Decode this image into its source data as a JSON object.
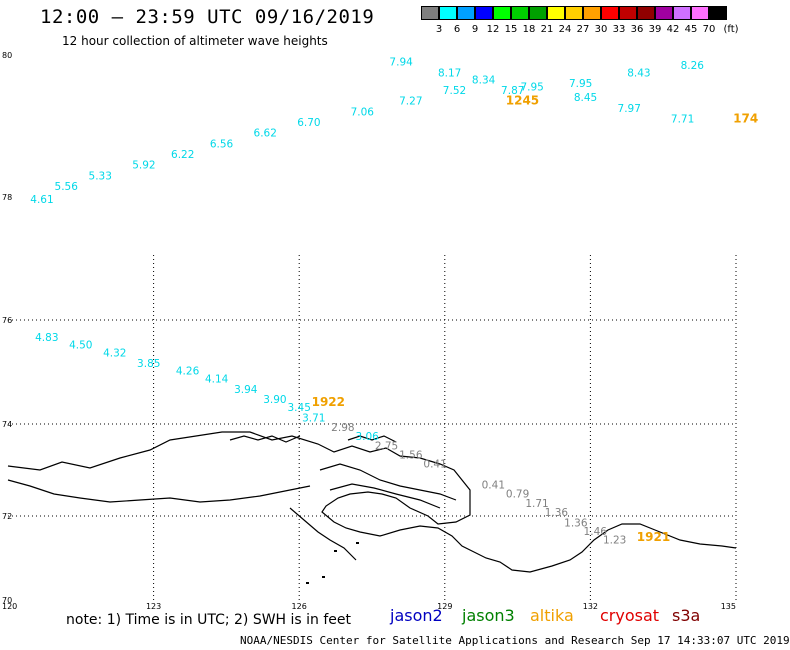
{
  "title": "12:00 – 23:59 UTC 09/16/2019",
  "subtitle": "12 hour collection of altimeter wave heights",
  "colorscale": {
    "colors": [
      "#7f7f7f",
      "#00ffff",
      "#00a0ff",
      "#0000ff",
      "#00ff00",
      "#00d000",
      "#00a000",
      "#ffff00",
      "#ffd000",
      "#ffa000",
      "#ff0000",
      "#c00000",
      "#900000",
      "#a000a0",
      "#d070ff",
      "#ff70ff",
      "#000000"
    ],
    "labels": [
      "3",
      "6",
      "9",
      "12",
      "15",
      "18",
      "21",
      "24",
      "27",
      "30",
      "33",
      "36",
      "39",
      "42",
      "45",
      "70"
    ],
    "unit": "(ft)"
  },
  "map": {
    "lat_labels": [
      "80",
      "78",
      "76",
      "74",
      "72",
      "70"
    ],
    "lon_labels": [
      "120",
      "123",
      "126",
      "129",
      "132",
      "135"
    ],
    "coastline_color": "#000000"
  },
  "tracks": [
    {
      "id": "jason3-track",
      "color": "#00d8e8",
      "points": [
        {
          "lon": 120.7,
          "lat": 77.9,
          "v": "4.61"
        },
        {
          "lon": 121.2,
          "lat": 78.1,
          "v": "5.56"
        },
        {
          "lon": 121.9,
          "lat": 78.25,
          "v": "5.33"
        },
        {
          "lon": 122.8,
          "lat": 78.4,
          "v": "5.92"
        },
        {
          "lon": 123.6,
          "lat": 78.55,
          "v": "6.22"
        },
        {
          "lon": 124.4,
          "lat": 78.7,
          "v": "6.56"
        },
        {
          "lon": 125.3,
          "lat": 78.85,
          "v": "6.62"
        },
        {
          "lon": 126.2,
          "lat": 79.0,
          "v": "6.70"
        },
        {
          "lon": 127.3,
          "lat": 79.15,
          "v": "7.06"
        },
        {
          "lon": 128.3,
          "lat": 79.3,
          "v": "7.27"
        },
        {
          "lon": 129.2,
          "lat": 79.45,
          "v": "7.52"
        },
        {
          "lon": 128.1,
          "lat": 79.85,
          "v": "7.94"
        },
        {
          "lon": 129.1,
          "lat": 79.7,
          "v": "8.17"
        },
        {
          "lon": 129.8,
          "lat": 79.6,
          "v": "8.34"
        },
        {
          "lon": 130.4,
          "lat": 79.45,
          "v": "7.87"
        },
        {
          "lon": 130.8,
          "lat": 79.5,
          "v": "7.95"
        },
        {
          "lon": 131.8,
          "lat": 79.55,
          "v": "7.95"
        },
        {
          "lon": 131.9,
          "lat": 79.35,
          "v": "8.45"
        },
        {
          "lon": 132.8,
          "lat": 79.2,
          "v": "7.97"
        },
        {
          "lon": 133.0,
          "lat": 79.7,
          "v": "8.43"
        },
        {
          "lon": 134.1,
          "lat": 79.8,
          "v": "8.26"
        },
        {
          "lon": 133.9,
          "lat": 79.05,
          "v": "7.71"
        }
      ]
    },
    {
      "id": "jason3-track-south",
      "color": "#00d8e8",
      "points": [
        {
          "lon": 120.8,
          "lat": 75.6,
          "v": "4.83"
        },
        {
          "lon": 121.5,
          "lat": 75.45,
          "v": "4.50"
        },
        {
          "lon": 122.2,
          "lat": 75.3,
          "v": "4.32"
        },
        {
          "lon": 122.9,
          "lat": 75.1,
          "v": "3.85"
        },
        {
          "lon": 123.7,
          "lat": 74.95,
          "v": "4.26"
        },
        {
          "lon": 124.3,
          "lat": 74.8,
          "v": "4.14"
        },
        {
          "lon": 124.9,
          "lat": 74.6,
          "v": "3.94"
        },
        {
          "lon": 125.5,
          "lat": 74.4,
          "v": "3.90"
        },
        {
          "lon": 126.0,
          "lat": 74.25,
          "v": "3.45"
        },
        {
          "lon": 126.3,
          "lat": 74.05,
          "v": "3.71"
        },
        {
          "lon": 127.4,
          "lat": 73.65,
          "v": "3.06"
        }
      ]
    },
    {
      "id": "gray-track",
      "color": "#808080",
      "points": [
        {
          "lon": 126.9,
          "lat": 73.85,
          "v": "2.98"
        },
        {
          "lon": 127.8,
          "lat": 73.45,
          "v": "2.75"
        },
        {
          "lon": 128.3,
          "lat": 73.25,
          "v": "1.56"
        },
        {
          "lon": 128.8,
          "lat": 73.05,
          "v": "0.41"
        },
        {
          "lon": 130.0,
          "lat": 72.6,
          "v": "0.41"
        },
        {
          "lon": 130.5,
          "lat": 72.4,
          "v": "0.79"
        },
        {
          "lon": 130.9,
          "lat": 72.2,
          "v": "1.71"
        },
        {
          "lon": 131.3,
          "lat": 72.0,
          "v": "1.36"
        },
        {
          "lon": 131.7,
          "lat": 71.75,
          "v": "1.36"
        },
        {
          "lon": 132.1,
          "lat": 71.55,
          "v": "1.46"
        },
        {
          "lon": 132.5,
          "lat": 71.35,
          "v": "1.23"
        }
      ]
    }
  ],
  "time_labels": [
    {
      "lon": 130.6,
      "lat": 79.3,
      "v": "1245",
      "color": "#f0a000"
    },
    {
      "lon": 126.6,
      "lat": 74.35,
      "v": "1922",
      "color": "#f0a000"
    },
    {
      "lon": 133.3,
      "lat": 71.4,
      "v": "1921",
      "color": "#f0a000"
    },
    {
      "lon": 135.2,
      "lat": 79.05,
      "v": "174",
      "color": "#f0a000"
    }
  ],
  "note": "note:  1) Time is in UTC;  2) SWH is in feet",
  "satellites": [
    {
      "name": "jason2",
      "color": "#0000c0"
    },
    {
      "name": "jason3",
      "color": "#008000"
    },
    {
      "name": "altika",
      "color": "#f0a000"
    },
    {
      "name": "cryosat",
      "color": "#e00000"
    },
    {
      "name": "s3a",
      "color": "#800000"
    }
  ],
  "credit": "NOAA/NESDIS Center for Satellite Applications and Research   Sep 17 14:33:07 UTC 2019"
}
